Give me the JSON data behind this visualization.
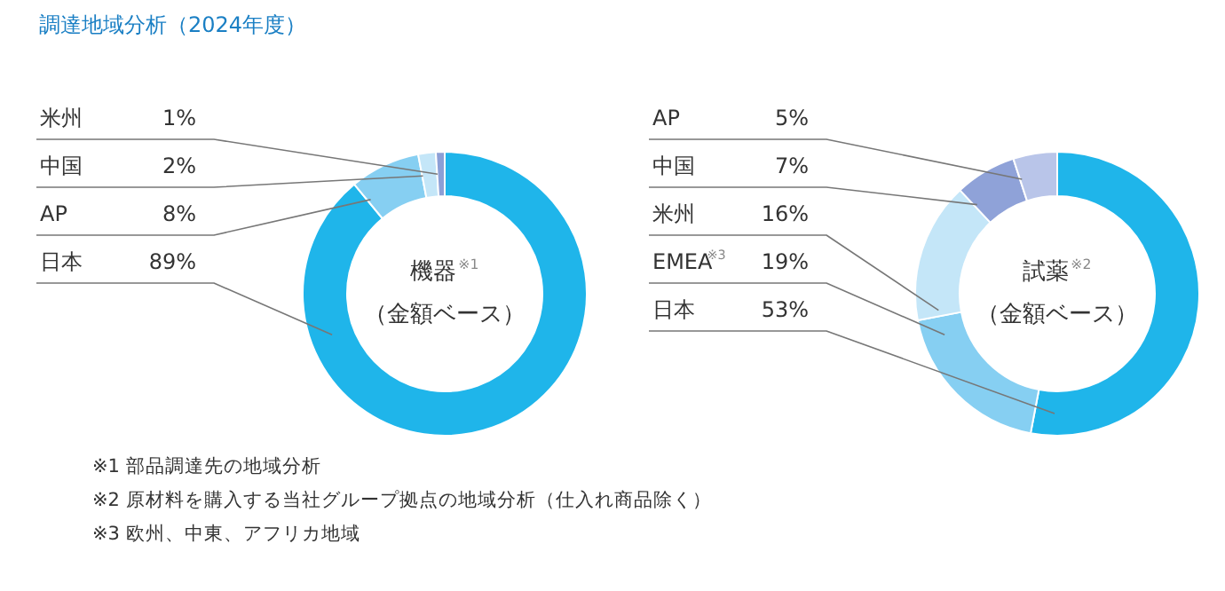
{
  "chart_data": [
    {
      "type": "donut",
      "title": "機器$^{※1}$",
      "subtitle": "（金額ベース）",
      "annotations": [
        "調達地域分析（2024年度）",
        "※1 部品調達先の地域分析",
        "※2 原材料を購入する当社グループ拠点の地域分析（仕入れ商品除く）",
        "※3 欧州、中東、アフリカ地域"
      ],
      "categories": [
        "日本",
        "AP",
        "中国",
        "米州"
      ],
      "values": [
        89,
        8,
        2,
        1
      ],
      "value_labels": [
        "89%",
        "8%",
        "2%",
        "1%"
      ],
      "colors": [
        "#1fb5ea",
        "#86cff2",
        "#c4e6f8",
        "#8c9fd6"
      ]
    },
    {
      "type": "donut",
      "title": "試薬$^{※2}$",
      "subtitle": "（金額ベース）",
      "categories": [
        "日本",
        "EMEA$^{※3}$",
        "米州",
        "中国",
        "AP"
      ],
      "values": [
        53,
        19,
        16,
        7,
        5
      ],
      "value_labels": [
        "53%",
        "19%",
        "16%",
        "7%",
        "5%"
      ],
      "colors": [
        "#1fb5ea",
        "#86cff2",
        "#c4e6f8",
        "#8fa2d8",
        "#b9c5e9"
      ]
    }
  ]
}
